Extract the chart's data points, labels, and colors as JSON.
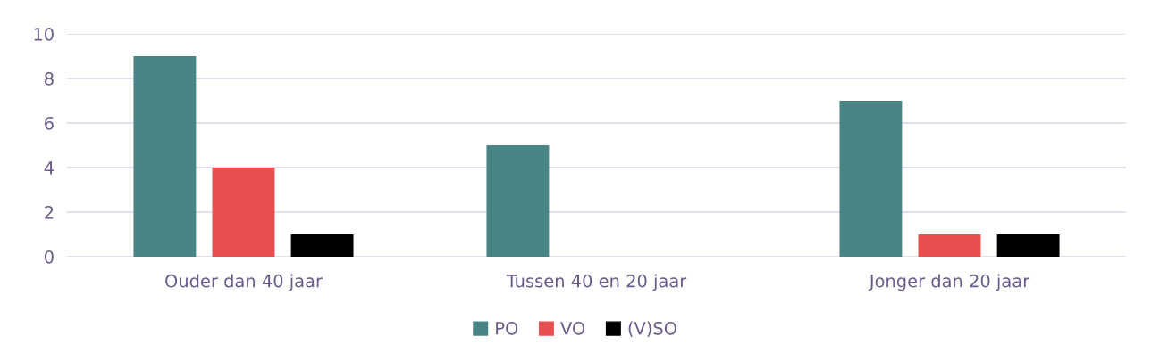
{
  "chart_data": {
    "type": "bar",
    "categories": [
      "Ouder dan 40 jaar",
      "Tussen 40 en 20 jaar",
      "Jonger dan 20 jaar"
    ],
    "series": [
      {
        "name": "PO",
        "color": "#4a8585",
        "values": [
          9,
          5,
          7
        ]
      },
      {
        "name": "VO",
        "color": "#e85050",
        "values": [
          4,
          0,
          1
        ]
      },
      {
        "name": "(V)SO",
        "color": "#000000",
        "values": [
          1,
          0,
          1
        ]
      }
    ],
    "ylim": [
      0,
      10
    ],
    "yticks": [
      0,
      2,
      4,
      6,
      8,
      10
    ],
    "grid": "y",
    "legend": "bottom"
  }
}
